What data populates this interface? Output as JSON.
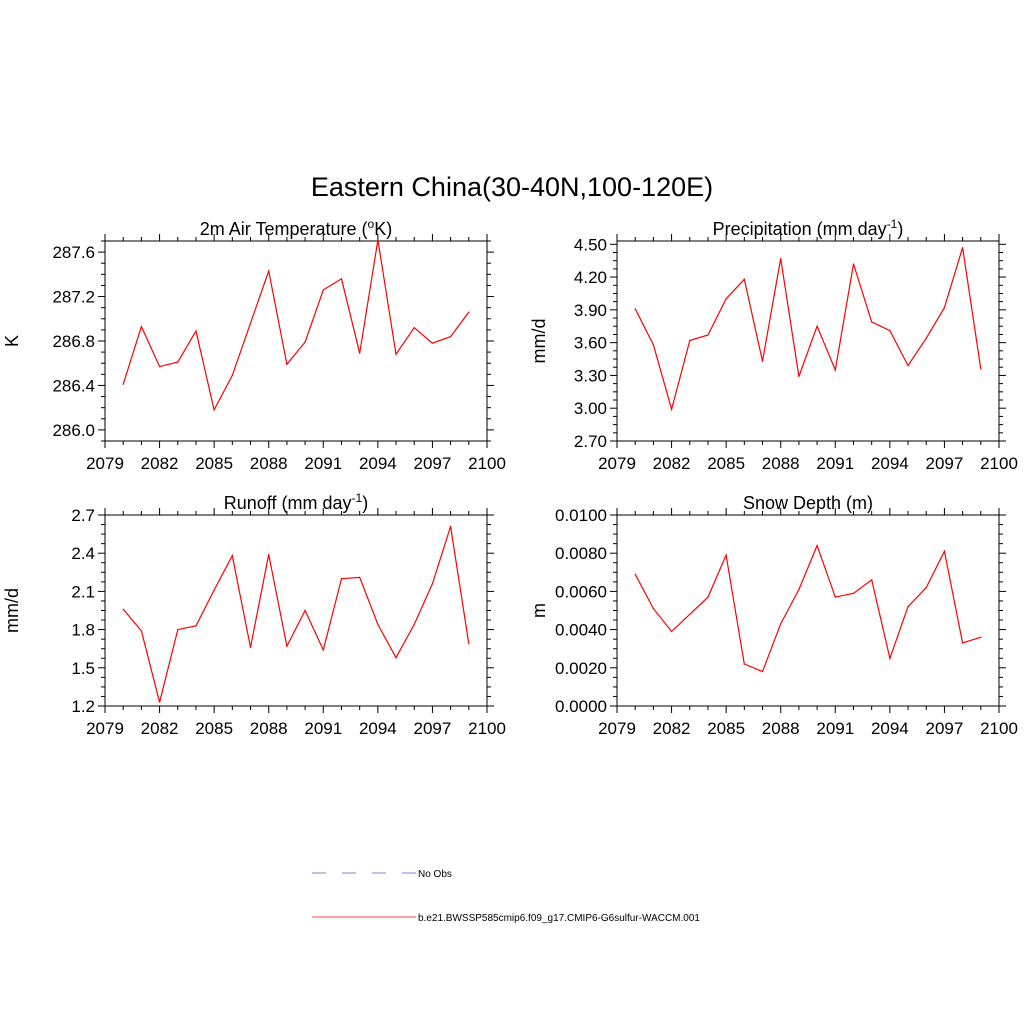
{
  "figure": {
    "title": "Eastern China(30-40N,100-120E)"
  },
  "chart_data": [
    {
      "type": "line",
      "title": "2m Air Temperature (",
      "title_sup": "o",
      "title_after": "K)",
      "xlabel": "",
      "ylabel": "K",
      "xlim": [
        2079,
        2100
      ],
      "ylim": [
        285.9,
        287.7
      ],
      "xticks": [
        2079,
        2082,
        2085,
        2088,
        2091,
        2094,
        2097,
        2100
      ],
      "yticks": [
        "286.0",
        "286.4",
        "286.8",
        "287.2",
        "287.6"
      ],
      "x": [
        2080,
        2081,
        2082,
        2083,
        2084,
        2085,
        2086,
        2087,
        2088,
        2089,
        2090,
        2091,
        2092,
        2093,
        2094,
        2095,
        2096,
        2097,
        2098,
        2099
      ],
      "series": [
        {
          "values": [
            286.41,
            286.93,
            286.57,
            286.61,
            286.89,
            286.18,
            286.49,
            286.96,
            287.43,
            286.59,
            286.79,
            287.26,
            287.36,
            286.69,
            287.71,
            286.68,
            286.92,
            286.78,
            286.84,
            287.06
          ],
          "color": "#ff0000"
        }
      ]
    },
    {
      "type": "line",
      "title": "Precipitation (mm day",
      "title_sup": "-1",
      "title_after": ")",
      "xlabel": "",
      "ylabel": "mm/d",
      "xlim": [
        2079,
        2100
      ],
      "ylim": [
        2.7,
        4.53
      ],
      "xticks": [
        2079,
        2082,
        2085,
        2088,
        2091,
        2094,
        2097,
        2100
      ],
      "yticks": [
        "2.70",
        "3.00",
        "3.30",
        "3.60",
        "3.90",
        "4.20",
        "4.50"
      ],
      "x": [
        2080,
        2081,
        2082,
        2083,
        2084,
        2085,
        2086,
        2087,
        2088,
        2089,
        2090,
        2091,
        2092,
        2093,
        2094,
        2095,
        2096,
        2097,
        2098,
        2099
      ],
      "series": [
        {
          "values": [
            3.91,
            3.58,
            2.99,
            3.62,
            3.67,
            4.0,
            4.18,
            3.43,
            4.37,
            3.29,
            3.75,
            3.35,
            4.32,
            3.79,
            3.71,
            3.39,
            3.64,
            3.92,
            4.47,
            3.36
          ],
          "color": "#ff0000"
        }
      ]
    },
    {
      "type": "line",
      "title": "Runoff (mm day",
      "title_sup": "-1",
      "title_after": ")",
      "xlabel": "",
      "ylabel": "mm/d",
      "xlim": [
        2079,
        2100
      ],
      "ylim": [
        1.2,
        2.7
      ],
      "xticks": [
        2079,
        2082,
        2085,
        2088,
        2091,
        2094,
        2097,
        2100
      ],
      "yticks": [
        "1.2",
        "1.5",
        "1.8",
        "2.1",
        "2.4",
        "2.7"
      ],
      "x": [
        2080,
        2081,
        2082,
        2083,
        2084,
        2085,
        2086,
        2087,
        2088,
        2089,
        2090,
        2091,
        2092,
        2093,
        2094,
        2095,
        2096,
        2097,
        2098,
        2099
      ],
      "series": [
        {
          "values": [
            1.96,
            1.79,
            1.23,
            1.8,
            1.83,
            2.11,
            2.38,
            1.66,
            2.39,
            1.67,
            1.95,
            1.64,
            2.2,
            2.21,
            1.84,
            1.58,
            1.84,
            2.16,
            2.61,
            1.69
          ],
          "color": "#ff0000"
        }
      ]
    },
    {
      "type": "line",
      "title": "Snow Depth (m)",
      "title_sup": "",
      "title_after": "",
      "xlabel": "",
      "ylabel": "m",
      "xlim": [
        2079,
        2100
      ],
      "ylim": [
        0.0,
        0.01
      ],
      "xticks": [
        2079,
        2082,
        2085,
        2088,
        2091,
        2094,
        2097,
        2100
      ],
      "yticks": [
        "0.0000",
        "0.0020",
        "0.0040",
        "0.0060",
        "0.0080",
        "0.0100"
      ],
      "x": [
        2080,
        2081,
        2082,
        2083,
        2084,
        2085,
        2086,
        2087,
        2088,
        2089,
        2090,
        2091,
        2092,
        2093,
        2094,
        2095,
        2096,
        2097,
        2098,
        2099
      ],
      "series": [
        {
          "values": [
            0.0069,
            0.0051,
            0.0039,
            0.0048,
            0.0057,
            0.0079,
            0.0022,
            0.0018,
            0.0043,
            0.0061,
            0.0084,
            0.0057,
            0.0059,
            0.0066,
            0.0025,
            0.0052,
            0.0062,
            0.0081,
            0.0033,
            0.0036
          ],
          "color": "#ff0000"
        }
      ]
    }
  ],
  "legend": {
    "items": [
      {
        "label": "No Obs",
        "color": "#aaaaee",
        "style": "dashed"
      },
      {
        "label": "b.e21.BWSSP585cmip6.f09_g17.CMIP6-G6sulfur-WACCM.001",
        "color": "#ff8080",
        "style": "solid"
      }
    ]
  }
}
